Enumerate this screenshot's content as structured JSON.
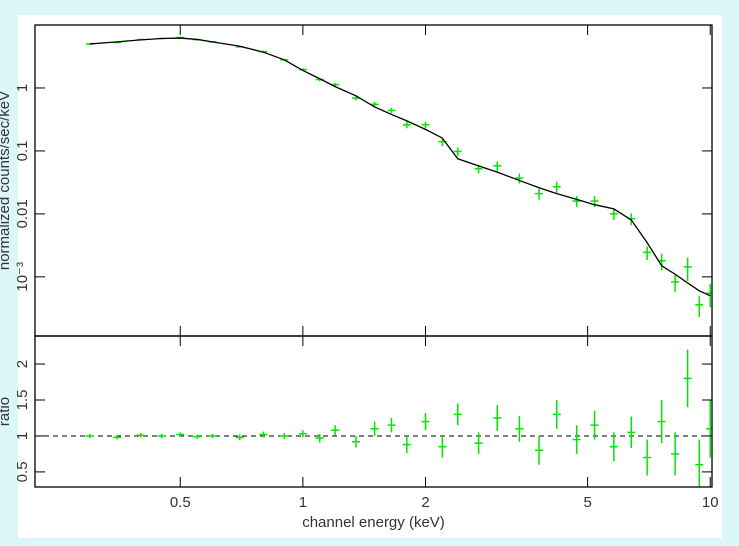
{
  "chart_data": [
    {
      "type": "line",
      "ylabel": "normalized counts/sec/keV",
      "xscale": "log",
      "yscale": "log",
      "xlim": [
        0.22,
        10.1
      ],
      "ylim": [
        0.000115,
        10
      ],
      "xticks": [
        0.5,
        1,
        2,
        5,
        10
      ],
      "yticks": [
        1,
        0.1,
        0.01,
        {
          "value": 0.001,
          "label": "10⁻³"
        }
      ],
      "x": [
        0.3,
        0.35,
        0.4,
        0.45,
        0.5,
        0.55,
        0.6,
        0.7,
        0.8,
        0.9,
        1.0,
        1.1,
        1.2,
        1.35,
        1.5,
        1.65,
        1.8,
        2.0,
        2.2,
        2.4,
        2.7,
        3.0,
        3.4,
        3.8,
        4.2,
        4.7,
        5.2,
        5.8,
        6.4,
        7.0,
        7.6,
        8.2,
        8.8,
        9.4,
        10
      ],
      "series": [
        {
          "color": "#00e600",
          "values": [
            5.0,
            5.29,
            5.86,
            6.1,
            6.32,
            5.84,
            5.4,
            4.51,
            3.77,
            2.8,
            1.96,
            1.36,
            1.13,
            0.69,
            0.55,
            0.44,
            0.26,
            0.26,
            0.14,
            0.098,
            0.052,
            0.058,
            0.037,
            0.021,
            0.027,
            0.016,
            0.016,
            0.01,
            0.0084,
            0.00245,
            0.0018,
            0.00083,
            0.00144,
            0.00036,
            0.00055
          ],
          "errors": [
            0.15,
            0.16,
            0.18,
            0.18,
            0.19,
            0.18,
            0.16,
            0.18,
            0.15,
            0.11,
            0.1,
            0.08,
            0.08,
            0.055,
            0.055,
            0.044,
            0.031,
            0.031,
            0.021,
            0.015,
            0.0078,
            0.0104,
            0.0067,
            0.0042,
            0.0054,
            0.0032,
            0.0032,
            0.002,
            0.0018,
            0.0006,
            0.00054,
            0.00025,
            0.00058,
            0.00013,
            0.00022
          ]
        },
        {
          "color": "#000000",
          "values": [
            5.0,
            5.4,
            5.8,
            6.1,
            6.2,
            5.9,
            5.4,
            4.6,
            3.7,
            2.8,
            1.9,
            1.4,
            1.05,
            0.75,
            0.5,
            0.38,
            0.3,
            0.22,
            0.16,
            0.075,
            0.058,
            0.046,
            0.034,
            0.026,
            0.021,
            0.017,
            0.014,
            0.012,
            0.008,
            0.0035,
            0.0015,
            0.0011,
            0.0008,
            0.0006,
            0.0005
          ]
        }
      ]
    },
    {
      "type": "scatter",
      "ylabel": "ratio",
      "xlabel": "channel energy (keV)",
      "xscale": "log",
      "xlim": [
        0.22,
        10.1
      ],
      "ylim": [
        0.29,
        2.39
      ],
      "xticks": [
        0.5,
        1,
        2,
        5,
        10
      ],
      "yticks": [
        0.5,
        1,
        1.5,
        2
      ],
      "reference_line": 1,
      "x": [
        0.3,
        0.35,
        0.4,
        0.45,
        0.5,
        0.55,
        0.6,
        0.7,
        0.8,
        0.9,
        1.0,
        1.1,
        1.2,
        1.35,
        1.5,
        1.65,
        1.8,
        2.0,
        2.2,
        2.4,
        2.7,
        3.0,
        3.4,
        3.8,
        4.2,
        4.7,
        5.2,
        5.8,
        6.4,
        7.0,
        7.6,
        8.2,
        8.8,
        9.4,
        10
      ],
      "series": [
        {
          "color": "#00e600",
          "values": [
            1.0,
            0.98,
            1.01,
            1.0,
            1.02,
            0.99,
            1.0,
            0.98,
            1.02,
            1.0,
            1.03,
            0.97,
            1.08,
            0.92,
            1.1,
            1.15,
            0.88,
            1.2,
            0.85,
            1.3,
            0.9,
            1.25,
            1.1,
            0.8,
            1.3,
            0.95,
            1.15,
            0.85,
            1.05,
            0.7,
            1.2,
            0.75,
            1.8,
            0.6,
            1.1
          ],
          "errors": [
            0.03,
            0.03,
            0.03,
            0.03,
            0.03,
            0.03,
            0.03,
            0.04,
            0.04,
            0.04,
            0.05,
            0.06,
            0.07,
            0.08,
            0.1,
            0.1,
            0.12,
            0.12,
            0.15,
            0.15,
            0.15,
            0.18,
            0.18,
            0.2,
            0.2,
            0.2,
            0.2,
            0.2,
            0.22,
            0.25,
            0.3,
            0.3,
            0.4,
            0.35,
            0.4
          ]
        }
      ]
    }
  ]
}
